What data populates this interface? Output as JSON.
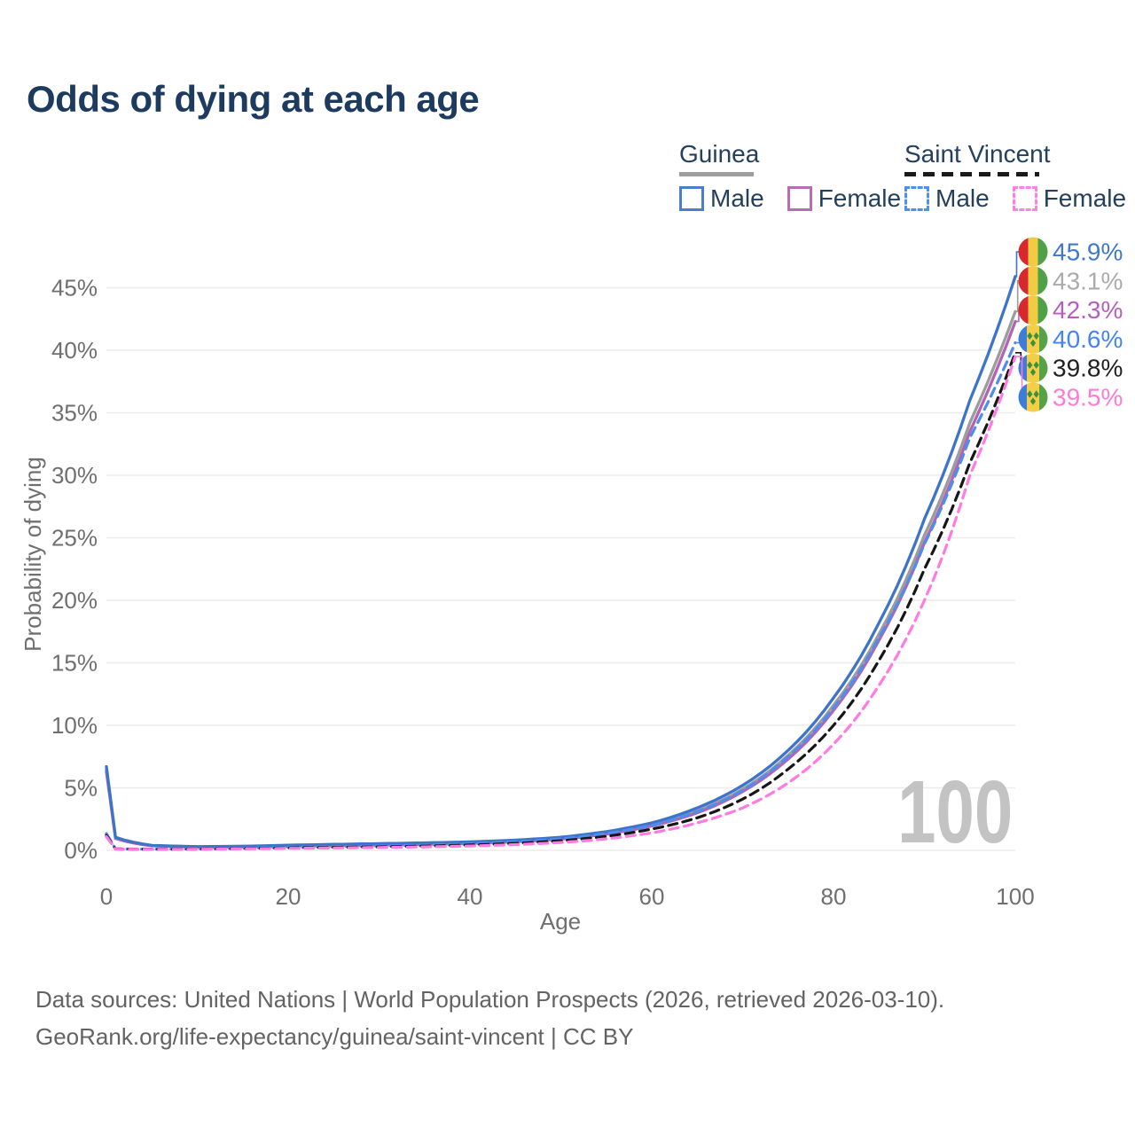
{
  "title": "Odds of dying at each age",
  "legend": {
    "groups": [
      {
        "label": "Guinea",
        "line_style": "solid",
        "underline_color": "#9e9e9e",
        "items": [
          {
            "label": "Male",
            "color": "#4b7dc8"
          },
          {
            "label": "Female",
            "color": "#b76db5"
          }
        ]
      },
      {
        "label": "Saint Vincent",
        "line_style": "dashed",
        "underline_color": "#1a1a1a",
        "items": [
          {
            "label": "Male",
            "color": "#4e8ff2"
          },
          {
            "label": "Female",
            "color": "#ff82e6"
          }
        ]
      }
    ]
  },
  "watermark": "100",
  "footer": {
    "line1": "Data sources: United Nations | World Population Prospects (2026, retrieved 2026-03-10).",
    "line2": "GeoRank.org/life-expectancy/guinea/saint-vincent | CC BY"
  },
  "chart_data": {
    "type": "line",
    "title": "Odds of dying at each age",
    "xlabel": "Age",
    "ylabel": "Probability of dying",
    "xlim": [
      0,
      100
    ],
    "ylim": [
      0,
      47
    ],
    "grid": true,
    "legend_position": "top-right",
    "x_tick_values": [
      0,
      20,
      40,
      60,
      80,
      100
    ],
    "x_tick_labels": [
      "0",
      "20",
      "40",
      "60",
      "80",
      "100"
    ],
    "y_tick_values": [
      0,
      5,
      10,
      15,
      20,
      25,
      30,
      35,
      40,
      45
    ],
    "y_tick_labels": [
      "0%",
      "5%",
      "10%",
      "15%",
      "20%",
      "25%",
      "30%",
      "35%",
      "40%",
      "45%"
    ],
    "x": [
      0,
      1,
      5,
      10,
      15,
      20,
      25,
      30,
      35,
      40,
      45,
      50,
      55,
      60,
      65,
      70,
      75,
      80,
      85,
      90,
      95,
      100
    ],
    "series": [
      {
        "name": "Guinea Male",
        "country": "guinea",
        "dashed": false,
        "color": "#3d74c9",
        "values": [
          6.7,
          1.05,
          0.4,
          0.3,
          0.33,
          0.42,
          0.48,
          0.54,
          0.6,
          0.68,
          0.82,
          1.05,
          1.5,
          2.2,
          3.4,
          5.2,
          8.0,
          12.2,
          18.2,
          26.5,
          36.0,
          45.9
        ],
        "end_label": "45.9%",
        "end_label_color": "#3e79cf"
      },
      {
        "name": "Guinea",
        "country": "guinea",
        "dashed": false,
        "color": "#9c9c9c",
        "values": [
          6.5,
          1.0,
          0.38,
          0.28,
          0.3,
          0.38,
          0.43,
          0.48,
          0.54,
          0.62,
          0.75,
          0.97,
          1.4,
          2.05,
          3.15,
          4.9,
          7.6,
          11.6,
          17.3,
          25.2,
          34.2,
          43.1
        ],
        "end_label": "43.1%",
        "end_label_color": "#ababab"
      },
      {
        "name": "Guinea Female",
        "country": "guinea",
        "dashed": false,
        "color": "#b363b4",
        "values": [
          6.3,
          0.95,
          0.36,
          0.27,
          0.28,
          0.34,
          0.38,
          0.43,
          0.48,
          0.56,
          0.68,
          0.9,
          1.3,
          1.95,
          3.0,
          4.7,
          7.3,
          11.2,
          16.8,
          24.6,
          33.5,
          42.3
        ],
        "end_label": "42.3%",
        "end_label_color": "#b75fc0"
      },
      {
        "name": "Saint Vincent Male",
        "country": "saint-vincent",
        "dashed": true,
        "color": "#4e8cf0",
        "values": [
          1.35,
          0.12,
          0.1,
          0.12,
          0.17,
          0.25,
          0.3,
          0.35,
          0.42,
          0.52,
          0.68,
          0.92,
          1.35,
          2.0,
          3.1,
          4.8,
          7.5,
          11.4,
          17.0,
          24.5,
          33.0,
          40.6
        ],
        "end_label": "40.6%",
        "end_label_color": "#4285f4"
      },
      {
        "name": "Saint Vincent",
        "country": "saint-vincent",
        "dashed": true,
        "color": "#161616",
        "values": [
          1.2,
          0.11,
          0.09,
          0.1,
          0.14,
          0.2,
          0.24,
          0.28,
          0.34,
          0.43,
          0.56,
          0.77,
          1.12,
          1.7,
          2.6,
          4.1,
          6.5,
          10.0,
          15.2,
          22.5,
          31.0,
          39.8
        ],
        "end_label": "39.8%",
        "end_label_color": "#212121"
      },
      {
        "name": "Saint Vincent Female",
        "country": "saint-vincent",
        "dashed": true,
        "color": "#ff7be2",
        "values": [
          1.1,
          0.1,
          0.08,
          0.09,
          0.12,
          0.16,
          0.19,
          0.23,
          0.28,
          0.35,
          0.46,
          0.63,
          0.92,
          1.4,
          2.2,
          3.4,
          5.4,
          8.5,
          13.2,
          20.0,
          30.0,
          39.5
        ],
        "end_label": "39.5%",
        "end_label_color": "#ff7bd4"
      }
    ],
    "flag_colors": {
      "guinea": {
        "stripes": [
          "#d7282e",
          "#f2cb44",
          "#4ea146"
        ]
      },
      "saint-vincent": {
        "stripes": [
          "#3f7cd9",
          "#f5ce47",
          "#55a346"
        ],
        "diamond": "#3c9140"
      }
    }
  }
}
